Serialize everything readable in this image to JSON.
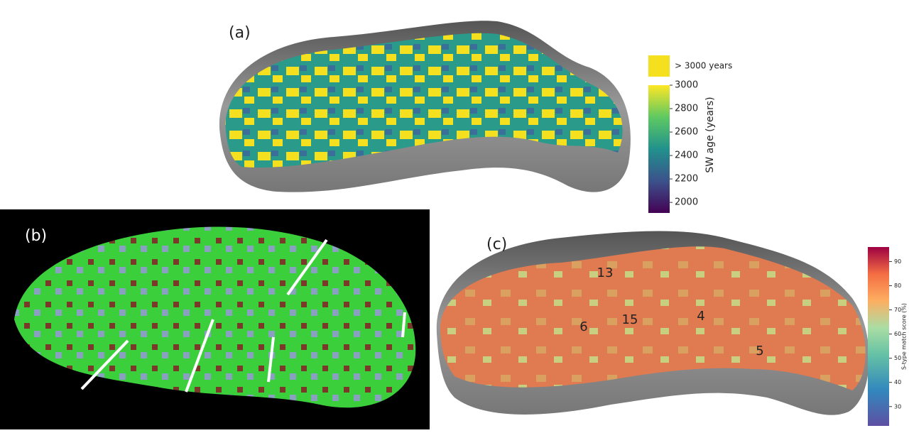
{
  "panels": {
    "a": {
      "label": "(a)",
      "above_label": "> 3000 years",
      "colorbar": {
        "label": "SW  age (years)",
        "lim": [
          1910,
          3000
        ],
        "ticks": [
          2000,
          2200,
          2400,
          2600,
          2800,
          3000
        ]
      }
    },
    "b": {
      "label": "(b)"
    },
    "c": {
      "label": "(c)",
      "colorbar": {
        "label": "S-type match score (%)",
        "lim": [
          22,
          96
        ],
        "ticks": [
          30,
          40,
          50,
          60,
          70,
          80,
          90
        ]
      },
      "regions": [
        13,
        6,
        15,
        4,
        5
      ]
    }
  }
}
